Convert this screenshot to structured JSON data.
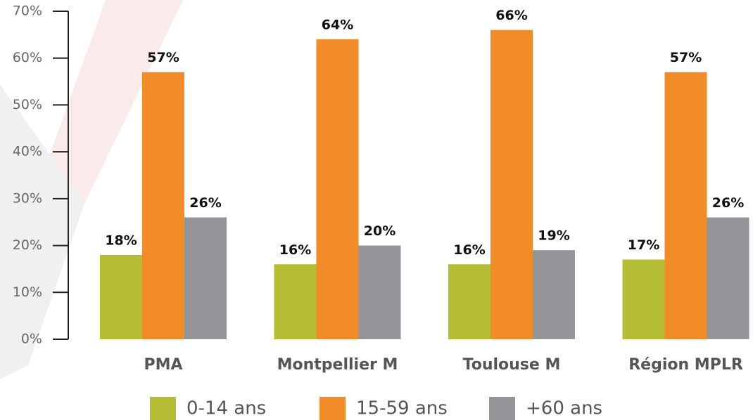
{
  "chart_data": {
    "type": "bar",
    "categories": [
      "PMA",
      "Montpellier M",
      "Toulouse M",
      "Région MPLR"
    ],
    "series": [
      {
        "name": "0-14 ans",
        "color": "#b5bd35",
        "values": [
          18,
          16,
          16,
          17
        ],
        "value_labels": [
          "18%",
          "16%",
          "16%",
          "17%"
        ]
      },
      {
        "name": "15-59 ans",
        "color": "#f28c28",
        "values": [
          57,
          64,
          66,
          57
        ],
        "value_labels": [
          "57%",
          "64%",
          "66%",
          "57%"
        ]
      },
      {
        "name": "+60 ans",
        "color": "#939598",
        "values": [
          26,
          20,
          19,
          26
        ],
        "value_labels": [
          "26%",
          "20%",
          "19%",
          "26%"
        ]
      }
    ],
    "ylim": [
      0,
      70
    ],
    "yticks": [
      {
        "value": 0,
        "label": "0%"
      },
      {
        "value": 10,
        "label": "10%"
      },
      {
        "value": 20,
        "label": "20%"
      },
      {
        "value": 30,
        "label": "30%"
      },
      {
        "value": 40,
        "label": "40%"
      },
      {
        "value": 50,
        "label": "50%"
      },
      {
        "value": 60,
        "label": "60%"
      },
      {
        "value": 70,
        "label": "70%"
      }
    ],
    "legend": "bottom"
  }
}
